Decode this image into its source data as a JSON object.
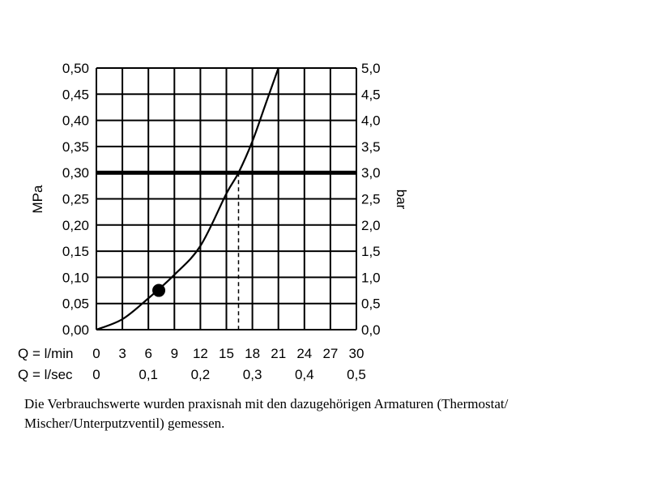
{
  "chart_data": {
    "type": "line",
    "y_left": {
      "label": "MPa",
      "ticks": [
        "0,00",
        "0,05",
        "0,10",
        "0,15",
        "0,20",
        "0,25",
        "0,30",
        "0,35",
        "0,40",
        "0,45",
        "0,50"
      ],
      "range": [
        0,
        0.5
      ]
    },
    "y_right": {
      "label": "bar",
      "ticks": [
        "0,0",
        "0,5",
        "1,0",
        "1,5",
        "2,0",
        "2,5",
        "3,0",
        "3,5",
        "4,0",
        "4,5",
        "5,0"
      ],
      "range": [
        0,
        5.0
      ]
    },
    "x_rows": [
      {
        "label": "Q = l/min",
        "ticks": [
          "0",
          "3",
          "6",
          "9",
          "12",
          "15",
          "18",
          "21",
          "24",
          "27",
          "30"
        ],
        "range": [
          0,
          30
        ]
      },
      {
        "label": "Q = l/sec",
        "ticks": [
          "0",
          "0,1",
          "0,2",
          "0,3",
          "0,4",
          "0,5"
        ],
        "range": [
          0,
          0.5
        ]
      }
    ],
    "grid": true,
    "series": [
      {
        "x": [
          0,
          3,
          6,
          9,
          12,
          15,
          16.4,
          18,
          19.5,
          21
        ],
        "y": [
          0,
          0.02,
          0.06,
          0.105,
          0.16,
          0.26,
          0.3,
          0.36,
          0.43,
          0.5
        ]
      }
    ],
    "reference_line": {
      "y": 0.3
    },
    "dashed_marker": {
      "x": 16.4,
      "y": 0.3
    },
    "marker_point": {
      "x": 7.2,
      "y": 0.075
    }
  },
  "caption": "Die Verbrauchswerte wurden praxisnah mit den dazugehörigen Armaturen (Thermostat/ Mischer/Unterputzventil) gemessen."
}
